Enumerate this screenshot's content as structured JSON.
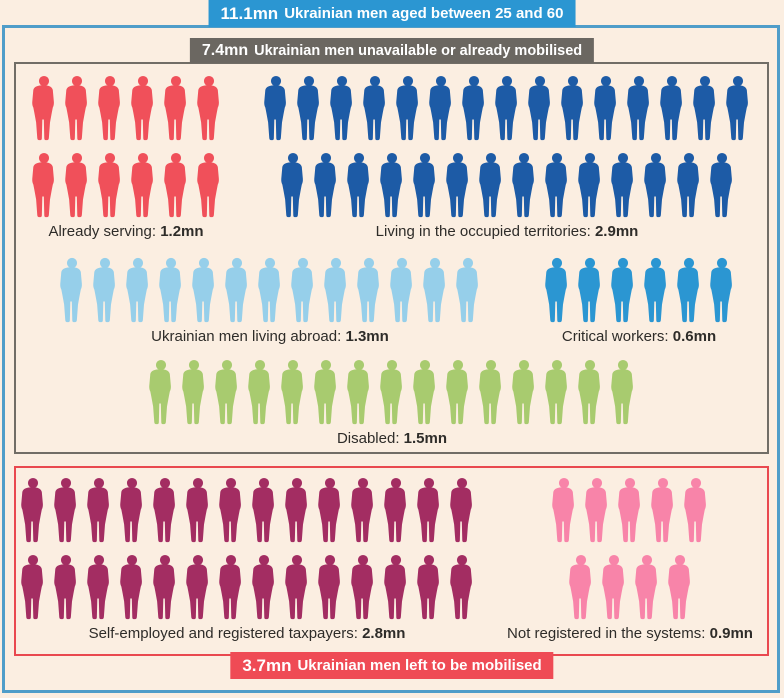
{
  "banners": {
    "total": {
      "value": "11.1mn",
      "text": "Ukrainian men aged between 25 and 60",
      "bg": "#2b96d2"
    },
    "unavailable": {
      "value": "7.4mn",
      "text": "Ukrainian men unavailable or already mobilised",
      "bg": "#6b6761"
    },
    "remaining": {
      "value": "3.7mn",
      "text": "Ukrainian men left to be mobilised",
      "bg": "#ef4b55"
    }
  },
  "colors": {
    "background": "#fbeee1",
    "frame_border": "#4f9dc9",
    "unavailable_box_border": "#716d66",
    "remaining_box_border": "#e9484f",
    "label_text": "#2e2c29"
  },
  "groups": [
    {
      "id": "already-serving",
      "label": "Already serving:",
      "value": "1.2mn",
      "color": "#f0505a",
      "rows": [
        6,
        6
      ]
    },
    {
      "id": "occupied-territories",
      "label": "Living in the occupied territories:",
      "value": "2.9mn",
      "color": "#1d5ba6",
      "rows": [
        15,
        14
      ]
    },
    {
      "id": "living-abroad",
      "label": "Ukrainian men living abroad:",
      "value": "1.3mn",
      "color": "#96cfea",
      "rows": [
        13
      ]
    },
    {
      "id": "critical-workers",
      "label": "Critical workers:",
      "value": "0.6mn",
      "color": "#2b96d2",
      "rows": [
        6
      ]
    },
    {
      "id": "disabled",
      "label": "Disabled:",
      "value": "1.5mn",
      "color": "#a8cb6f",
      "rows": [
        15
      ]
    },
    {
      "id": "self-employed",
      "label": "Self-employed and registered taxpayers:",
      "value": "2.8mn",
      "color": "#a32d62",
      "rows": [
        14,
        14
      ]
    },
    {
      "id": "not-registered",
      "label": "Not registered in the systems:",
      "value": "0.9mn",
      "color": "#f884a9",
      "rows": [
        5,
        4
      ]
    }
  ],
  "chart_data": {
    "type": "pictogram",
    "title": "11.1mn Ukrainian men aged between 25 and 60",
    "unit_per_figure": "0.1mn per person icon",
    "total": {
      "label": "Ukrainian men aged between 25 and 60",
      "value_mn": 11.1
    },
    "sections": [
      {
        "label": "Ukrainian men unavailable or already mobilised",
        "value_mn": 7.4,
        "groups": [
          {
            "label": "Already serving",
            "value_mn": 1.2,
            "figure_count": 12,
            "color": "#f0505a"
          },
          {
            "label": "Living in the occupied territories",
            "value_mn": 2.9,
            "figure_count": 29,
            "color": "#1d5ba6"
          },
          {
            "label": "Ukrainian men living abroad",
            "value_mn": 1.3,
            "figure_count": 13,
            "color": "#96cfea"
          },
          {
            "label": "Critical workers",
            "value_mn": 0.6,
            "figure_count": 6,
            "color": "#2b96d2"
          },
          {
            "label": "Disabled",
            "value_mn": 1.5,
            "figure_count": 15,
            "color": "#a8cb6f"
          }
        ]
      },
      {
        "label": "Ukrainian men left to be mobilised",
        "value_mn": 3.7,
        "groups": [
          {
            "label": "Self-employed and registered taxpayers",
            "value_mn": 2.8,
            "figure_count": 28,
            "color": "#a32d62"
          },
          {
            "label": "Not registered in the systems",
            "value_mn": 0.9,
            "figure_count": 9,
            "color": "#f884a9"
          }
        ]
      }
    ]
  }
}
